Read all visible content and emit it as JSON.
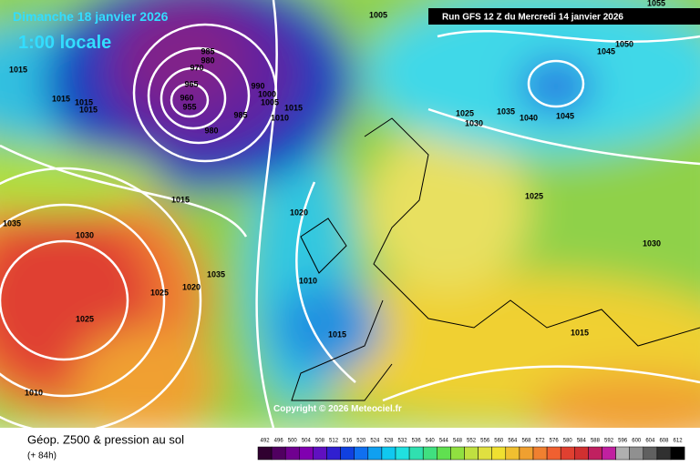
{
  "header": {
    "valid_date": "Dimanche 18 janvier 2026",
    "local_time": "1:00 locale",
    "run": "Run GFS 12 Z du Mercredi 14 janvier 2026"
  },
  "copyright": "Copyright © 2026 Meteociel.fr",
  "footer": {
    "title": "Géop. Z500 & pression au sol",
    "lead": "(+ 84h)"
  },
  "colorbar": {
    "labels": [
      492,
      496,
      500,
      504,
      508,
      512,
      516,
      520,
      524,
      528,
      532,
      536,
      540,
      544,
      548,
      552,
      556,
      560,
      564,
      568,
      572,
      576,
      580,
      584,
      588,
      592,
      596,
      600,
      604,
      608,
      612
    ]
  },
  "isobar_labels": [
    1005,
    1055,
    1050,
    1045,
    985,
    980,
    970,
    965,
    960,
    955,
    980,
    985,
    990,
    1000,
    1005,
    1010,
    1015,
    1015,
    1015,
    1015,
    1015,
    1015,
    1020,
    1025,
    1030,
    1035,
    1040,
    1045,
    1025,
    1030,
    1035,
    1030,
    1025,
    1020,
    1035,
    1025,
    1010,
    1010,
    1015,
    1015
  ]
}
